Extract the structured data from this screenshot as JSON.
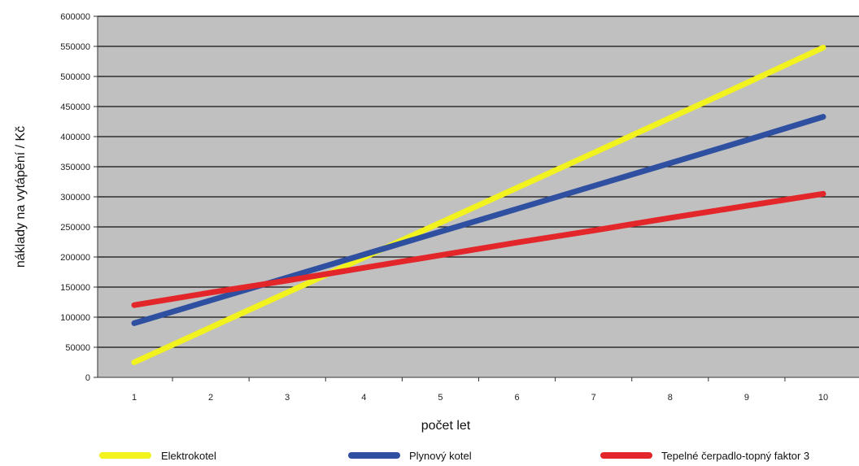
{
  "chart_data": {
    "type": "line",
    "x": [
      1,
      2,
      3,
      4,
      5,
      6,
      7,
      8,
      9,
      10
    ],
    "xlabel": "počet let",
    "ylabel": "náklady na vytápění / Kč",
    "ylim": [
      0,
      600000
    ],
    "yticks": [
      0,
      50000,
      100000,
      150000,
      200000,
      250000,
      300000,
      350000,
      400000,
      450000,
      500000,
      550000,
      600000
    ],
    "ytick_labels": [
      "0",
      "50000",
      "100000",
      "150000",
      "200000",
      "250000",
      "300000",
      "350000",
      "400000",
      "450000",
      "500000",
      "550000",
      "600000"
    ],
    "xtick_labels": [
      "1",
      "2",
      "3",
      "4",
      "5",
      "6",
      "7",
      "8",
      "9",
      "10"
    ],
    "grid": "horizontal",
    "legend": "bottom",
    "plot_background": "#c0c0c0",
    "series": [
      {
        "name": "Elektrokotel",
        "color": "#f2f21f",
        "values": [
          25000,
          83000,
          141000,
          199000,
          257000,
          315000,
          373000,
          431000,
          489000,
          548000
        ]
      },
      {
        "name": "Plynový kotel",
        "color": "#2f4fa0",
        "values": [
          90000,
          128000,
          166000,
          204000,
          242000,
          280000,
          318000,
          356000,
          394000,
          433000
        ]
      },
      {
        "name": "Tepelné čerpadlo-topný faktor 3",
        "color": "#e3262a",
        "values": [
          120000,
          141000,
          161000,
          182000,
          203000,
          224000,
          244000,
          265000,
          285000,
          305000
        ]
      }
    ]
  }
}
